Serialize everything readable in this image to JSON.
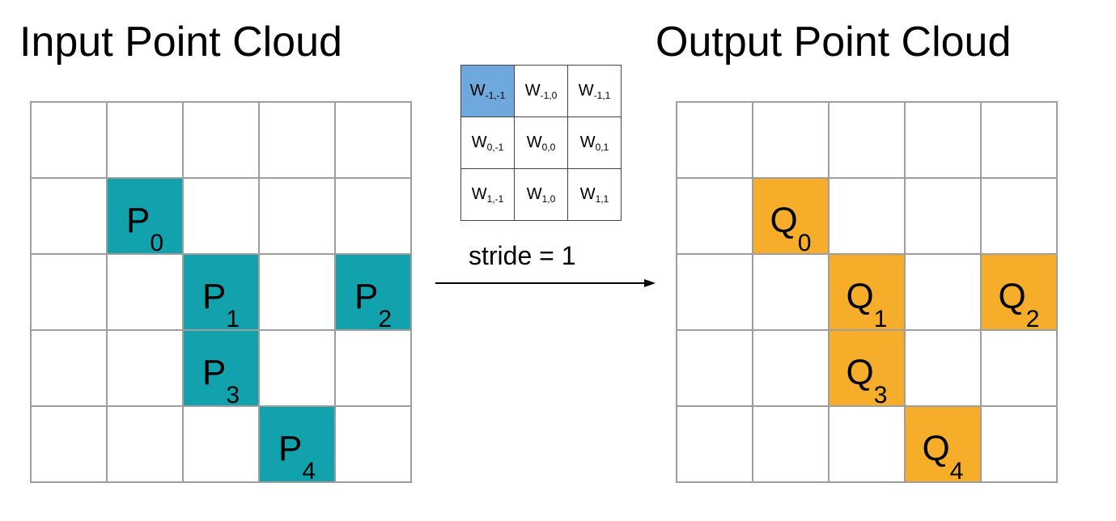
{
  "titles": {
    "input": "Input Point Cloud",
    "output": "Output Point Cloud"
  },
  "input_grid": {
    "rows": [
      [
        {
          "letter": "",
          "index": ""
        },
        {
          "letter": "",
          "index": ""
        },
        {
          "letter": "",
          "index": ""
        },
        {
          "letter": "",
          "index": ""
        },
        {
          "letter": "",
          "index": ""
        }
      ],
      [
        {
          "letter": "",
          "index": ""
        },
        {
          "letter": "P",
          "index": "0"
        },
        {
          "letter": "",
          "index": ""
        },
        {
          "letter": "",
          "index": ""
        },
        {
          "letter": "",
          "index": ""
        }
      ],
      [
        {
          "letter": "",
          "index": ""
        },
        {
          "letter": "",
          "index": ""
        },
        {
          "letter": "P",
          "index": "1"
        },
        {
          "letter": "",
          "index": ""
        },
        {
          "letter": "P",
          "index": "2"
        }
      ],
      [
        {
          "letter": "",
          "index": ""
        },
        {
          "letter": "",
          "index": ""
        },
        {
          "letter": "P",
          "index": "3"
        },
        {
          "letter": "",
          "index": ""
        },
        {
          "letter": "",
          "index": ""
        }
      ],
      [
        {
          "letter": "",
          "index": ""
        },
        {
          "letter": "",
          "index": ""
        },
        {
          "letter": "",
          "index": ""
        },
        {
          "letter": "P",
          "index": "4"
        },
        {
          "letter": "",
          "index": ""
        }
      ]
    ],
    "fill_color": "#11a2ad"
  },
  "output_grid": {
    "rows": [
      [
        {
          "letter": "",
          "index": ""
        },
        {
          "letter": "",
          "index": ""
        },
        {
          "letter": "",
          "index": ""
        },
        {
          "letter": "",
          "index": ""
        },
        {
          "letter": "",
          "index": ""
        }
      ],
      [
        {
          "letter": "",
          "index": ""
        },
        {
          "letter": "Q",
          "index": "0"
        },
        {
          "letter": "",
          "index": ""
        },
        {
          "letter": "",
          "index": ""
        },
        {
          "letter": "",
          "index": ""
        }
      ],
      [
        {
          "letter": "",
          "index": ""
        },
        {
          "letter": "",
          "index": ""
        },
        {
          "letter": "Q",
          "index": "1"
        },
        {
          "letter": "",
          "index": ""
        },
        {
          "letter": "Q",
          "index": "2"
        }
      ],
      [
        {
          "letter": "",
          "index": ""
        },
        {
          "letter": "",
          "index": ""
        },
        {
          "letter": "Q",
          "index": "3"
        },
        {
          "letter": "",
          "index": ""
        },
        {
          "letter": "",
          "index": ""
        }
      ],
      [
        {
          "letter": "",
          "index": ""
        },
        {
          "letter": "",
          "index": ""
        },
        {
          "letter": "",
          "index": ""
        },
        {
          "letter": "Q",
          "index": "4"
        },
        {
          "letter": "",
          "index": ""
        }
      ]
    ],
    "fill_color": "#f5ad2a"
  },
  "kernel": {
    "symbol": "W",
    "rows": [
      [
        {
          "sub": "-1,-1",
          "highlight": true
        },
        {
          "sub": "-1,0",
          "highlight": false
        },
        {
          "sub": "-1,1",
          "highlight": false
        }
      ],
      [
        {
          "sub": "0,-1",
          "highlight": false
        },
        {
          "sub": "0,0",
          "highlight": false
        },
        {
          "sub": "0,1",
          "highlight": false
        }
      ],
      [
        {
          "sub": "1,-1",
          "highlight": false
        },
        {
          "sub": "1,0",
          "highlight": false
        },
        {
          "sub": "1,1",
          "highlight": false
        }
      ]
    ],
    "highlight_color": "#6ea8dd"
  },
  "stride_label": "stride = 1"
}
